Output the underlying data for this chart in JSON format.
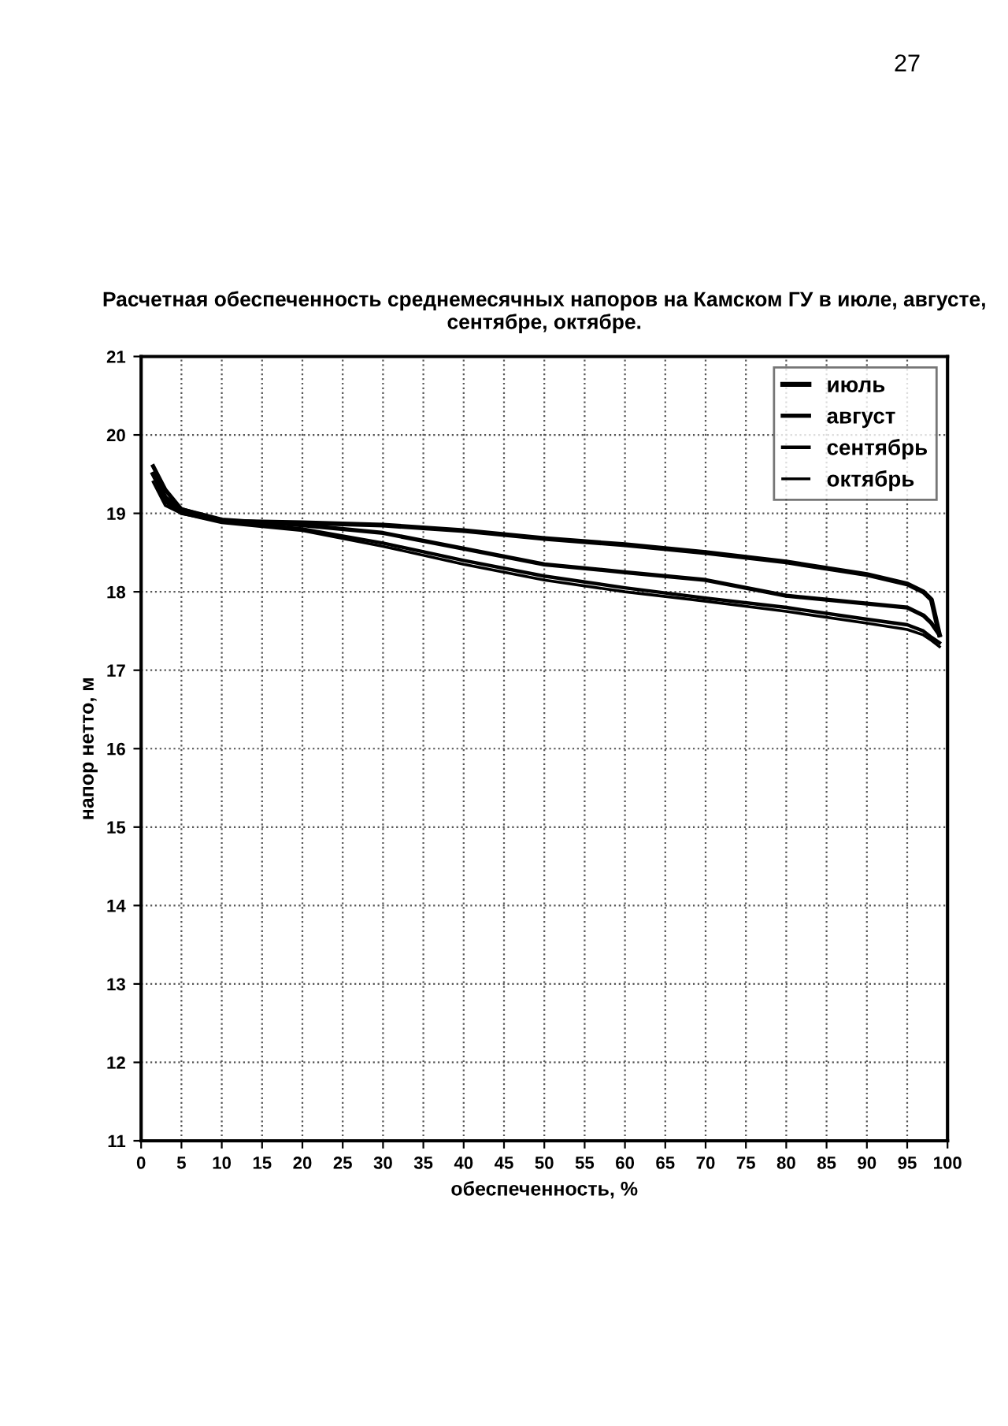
{
  "chart_data": {
    "type": "line",
    "title": "Расчетная обеспеченность среднемесячных напоров на Камском ГУ в июле, августе,\nсентябре, октябре.",
    "xlabel": "обеспеченность, %",
    "ylabel": "напор нетто, м",
    "annotations": [
      "27"
    ],
    "x": [
      1.5,
      3,
      5,
      10,
      20,
      30,
      40,
      50,
      60,
      70,
      80,
      90,
      95,
      97,
      98,
      99
    ],
    "series": [
      {
        "name": "июль",
        "color": "#000000",
        "values": [
          19.5,
          19.2,
          19.05,
          18.9,
          18.88,
          18.85,
          18.78,
          18.68,
          18.6,
          18.5,
          18.38,
          18.22,
          18.1,
          18.0,
          17.9,
          17.45
        ]
      },
      {
        "name": "август",
        "color": "#000000",
        "values": [
          19.6,
          19.3,
          19.05,
          18.92,
          18.85,
          18.75,
          18.55,
          18.35,
          18.25,
          18.15,
          17.95,
          17.85,
          17.8,
          17.7,
          17.6,
          17.45
        ]
      },
      {
        "name": "сентябрь",
        "color": "#000000",
        "values": [
          19.5,
          19.15,
          19.0,
          18.9,
          18.8,
          18.62,
          18.4,
          18.2,
          18.05,
          17.92,
          17.8,
          17.65,
          17.58,
          17.5,
          17.42,
          17.35
        ]
      },
      {
        "name": "октябрь",
        "color": "#000000",
        "values": [
          19.4,
          19.1,
          19.0,
          18.88,
          18.78,
          18.58,
          18.35,
          18.15,
          18.0,
          17.88,
          17.75,
          17.6,
          17.52,
          17.45,
          17.38,
          17.3
        ]
      }
    ],
    "xlim": [
      0,
      100
    ],
    "xticks": [
      0,
      5,
      10,
      15,
      20,
      25,
      30,
      35,
      40,
      45,
      50,
      55,
      60,
      65,
      70,
      75,
      80,
      85,
      90,
      95,
      100
    ],
    "ylim": [
      11,
      21
    ],
    "yticks": [
      11,
      12,
      13,
      14,
      15,
      16,
      17,
      18,
      19,
      20,
      21
    ],
    "grid": true,
    "legend": "top right",
    "marker": "none",
    "line_style": "solid"
  }
}
